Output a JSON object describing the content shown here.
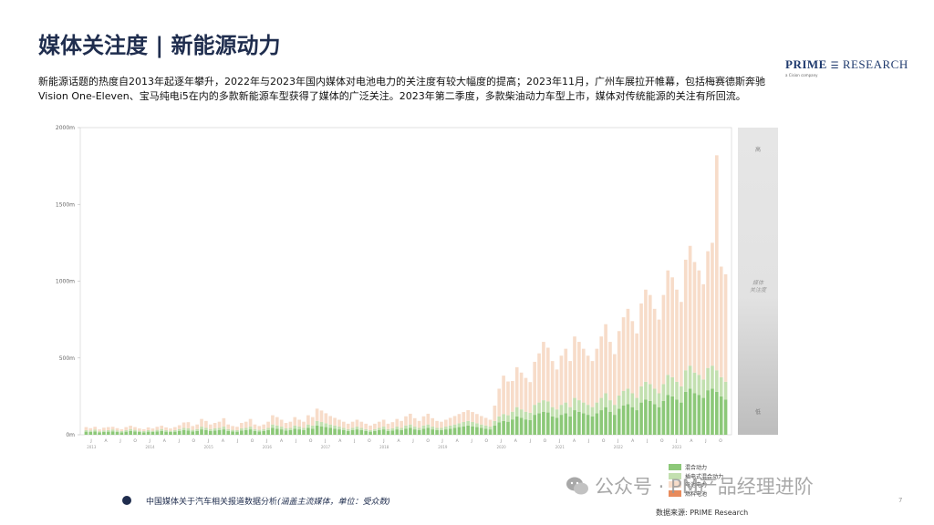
{
  "title": "媒体关注度 | 新能源动力",
  "logo": {
    "brand_bold": "PRIME",
    "brand_rest": "RESEARCH",
    "subtitle": "a Cision company"
  },
  "description": "新能源话题的热度自2013年起逐年攀升，2022年与2023年国内媒体对电池电力的关注度有较大幅度的提高；2023年11月，广州车展拉开帷幕，包括梅赛德斯奔驰Vision One-Eleven、宝马纯电i5在内的多款新能源车型获得了媒体的广泛关注。2023年第二季度，多款柴油动力车型上市，媒体对传统能源的关注有所回流。",
  "footer": {
    "text": "中国媒体关于汽车相关报道数据分析",
    "note": "(涵盖主流媒体，单位：受众数)"
  },
  "source": "数据来源: PRIME Research",
  "page_number": "7",
  "watermark": "公众号 · PM产品经理进阶",
  "scale_bar": {
    "high": "高",
    "mid": "媒体\n关注度",
    "low": "低"
  },
  "colors": {
    "hybrid": "#8cc878",
    "phev": "#c3e0b0",
    "ev": "#f7dcc9",
    "fuelcell": "#e88b5c",
    "title": "#1f2d4e"
  },
  "chart_data": {
    "type": "bar",
    "stacked": true,
    "ylim": [
      0,
      2000
    ],
    "yticks": [
      "0m",
      "500m",
      "1000m",
      "1500m",
      "2000m"
    ],
    "xtick_labels": [
      "J",
      "A",
      "J",
      "O",
      "J",
      "A",
      "J",
      "O",
      "J",
      "A",
      "J",
      "O",
      "J",
      "A",
      "J",
      "O",
      "J",
      "A",
      "J",
      "O",
      "J",
      "A",
      "J",
      "O",
      "J",
      "A",
      "J",
      "O",
      "J",
      "A",
      "J",
      "O",
      "J",
      "A",
      "J",
      "O",
      "J",
      "A",
      "J",
      "O",
      "J",
      "A",
      "J",
      "O"
    ],
    "year_labels": [
      "2013",
      "2014",
      "2015",
      "2016",
      "2017",
      "2018",
      "2019",
      "2020",
      "2021",
      "2022",
      "2023"
    ],
    "legend": [
      "混合动力",
      "插电式混合动力",
      "电池电力",
      "燃料电池"
    ],
    "series": [
      {
        "name": "混合动力",
        "values": [
          20,
          18,
          22,
          15,
          18,
          20,
          22,
          18,
          16,
          20,
          25,
          22,
          18,
          16,
          20,
          18,
          22,
          25,
          20,
          18,
          20,
          25,
          30,
          28,
          22,
          25,
          35,
          30,
          25,
          28,
          30,
          35,
          25,
          22,
          20,
          28,
          30,
          35,
          25,
          22,
          25,
          30,
          45,
          40,
          35,
          28,
          30,
          40,
          35,
          30,
          45,
          40,
          60,
          55,
          50,
          45,
          40,
          35,
          30,
          25,
          30,
          35,
          30,
          25,
          20,
          25,
          30,
          35,
          25,
          28,
          35,
          30,
          40,
          45,
          35,
          30,
          40,
          45,
          35,
          30,
          30,
          35,
          40,
          45,
          50,
          55,
          60,
          55,
          50,
          45,
          40,
          35,
          60,
          80,
          90,
          85,
          100,
          120,
          110,
          100,
          95,
          130,
          140,
          150,
          145,
          120,
          110,
          130,
          140,
          120,
          160,
          150,
          140,
          130,
          120,
          140,
          160,
          180,
          150,
          130,
          170,
          190,
          200,
          180,
          160,
          210,
          230,
          220,
          200,
          180,
          220,
          260,
          250,
          230,
          210,
          280,
          300,
          270,
          260,
          240,
          290,
          300,
          280,
          250,
          230
        ]
      },
      {
        "name": "插电式混合动力",
        "values": [
          10,
          10,
          12,
          8,
          10,
          10,
          12,
          10,
          8,
          10,
          12,
          10,
          8,
          8,
          10,
          8,
          10,
          12,
          10,
          8,
          10,
          12,
          15,
          14,
          10,
          12,
          18,
          15,
          12,
          14,
          15,
          18,
          12,
          10,
          10,
          14,
          15,
          18,
          12,
          10,
          12,
          15,
          22,
          20,
          18,
          14,
          15,
          20,
          18,
          15,
          22,
          20,
          30,
          28,
          25,
          22,
          20,
          18,
          15,
          12,
          15,
          18,
          15,
          12,
          10,
          12,
          15,
          18,
          12,
          14,
          18,
          15,
          20,
          22,
          18,
          15,
          20,
          22,
          18,
          15,
          15,
          18,
          20,
          22,
          25,
          28,
          30,
          28,
          25,
          22,
          20,
          18,
          30,
          40,
          45,
          42,
          50,
          60,
          55,
          50,
          48,
          65,
          70,
          75,
          72,
          60,
          55,
          65,
          70,
          60,
          80,
          75,
          70,
          65,
          60,
          70,
          80,
          90,
          75,
          65,
          85,
          95,
          100,
          90,
          80,
          105,
          115,
          110,
          100,
          90,
          110,
          130,
          125,
          115,
          105,
          140,
          150,
          135,
          130,
          120,
          145,
          150,
          140,
          125,
          115
        ]
      },
      {
        "name": "电池电力",
        "values": [
          20,
          15,
          18,
          12,
          18,
          20,
          18,
          15,
          12,
          20,
          22,
          18,
          15,
          12,
          18,
          15,
          20,
          22,
          18,
          15,
          20,
          25,
          35,
          40,
          25,
          30,
          50,
          45,
          30,
          35,
          40,
          55,
          30,
          25,
          22,
          35,
          40,
          50,
          30,
          25,
          30,
          40,
          60,
          55,
          45,
          35,
          40,
          55,
          45,
          40,
          60,
          55,
          80,
          75,
          65,
          55,
          50,
          45,
          40,
          35,
          40,
          45,
          40,
          35,
          30,
          35,
          40,
          45,
          35,
          40,
          50,
          45,
          60,
          70,
          55,
          45,
          60,
          70,
          55,
          45,
          40,
          45,
          50,
          55,
          60,
          65,
          70,
          65,
          60,
          55,
          50,
          45,
          100,
          180,
          250,
          220,
          200,
          260,
          240,
          220,
          200,
          280,
          320,
          380,
          350,
          300,
          260,
          320,
          350,
          300,
          400,
          380,
          350,
          320,
          300,
          350,
          400,
          450,
          380,
          330,
          420,
          480,
          520,
          470,
          420,
          540,
          600,
          580,
          520,
          480,
          580,
          680,
          650,
          600,
          550,
          720,
          780,
          720,
          680,
          620,
          760,
          800,
          1400,
          720,
          700
        ]
      },
      {
        "name": "燃料电池",
        "values": [
          0,
          0,
          0,
          0,
          0,
          0,
          0,
          0,
          0,
          0,
          0,
          0,
          0,
          0,
          0,
          0,
          0,
          0,
          0,
          0,
          0,
          0,
          0,
          0,
          0,
          0,
          0,
          0,
          0,
          0,
          0,
          0,
          0,
          0,
          0,
          0,
          0,
          0,
          0,
          0,
          0,
          0,
          0,
          0,
          0,
          0,
          0,
          0,
          0,
          0,
          0,
          0,
          0,
          0,
          0,
          0,
          0,
          0,
          0,
          0,
          0,
          0,
          0,
          0,
          0,
          0,
          0,
          0,
          0,
          0,
          0,
          0,
          0,
          0,
          0,
          0,
          0,
          0,
          0,
          0,
          0,
          0,
          0,
          0,
          0,
          0,
          0,
          0,
          0,
          0,
          0,
          0,
          0,
          0,
          0,
          0,
          0,
          0,
          0,
          0,
          0,
          0,
          0,
          0,
          0,
          0,
          0,
          0,
          0,
          0,
          0,
          0,
          0,
          0,
          0,
          0,
          0,
          0,
          0,
          0,
          0,
          0,
          0,
          0,
          0,
          0,
          0,
          0,
          0,
          0,
          0,
          0,
          0,
          0,
          0,
          0,
          0,
          0,
          0,
          0,
          0,
          0,
          0,
          0,
          0
        ]
      }
    ]
  }
}
